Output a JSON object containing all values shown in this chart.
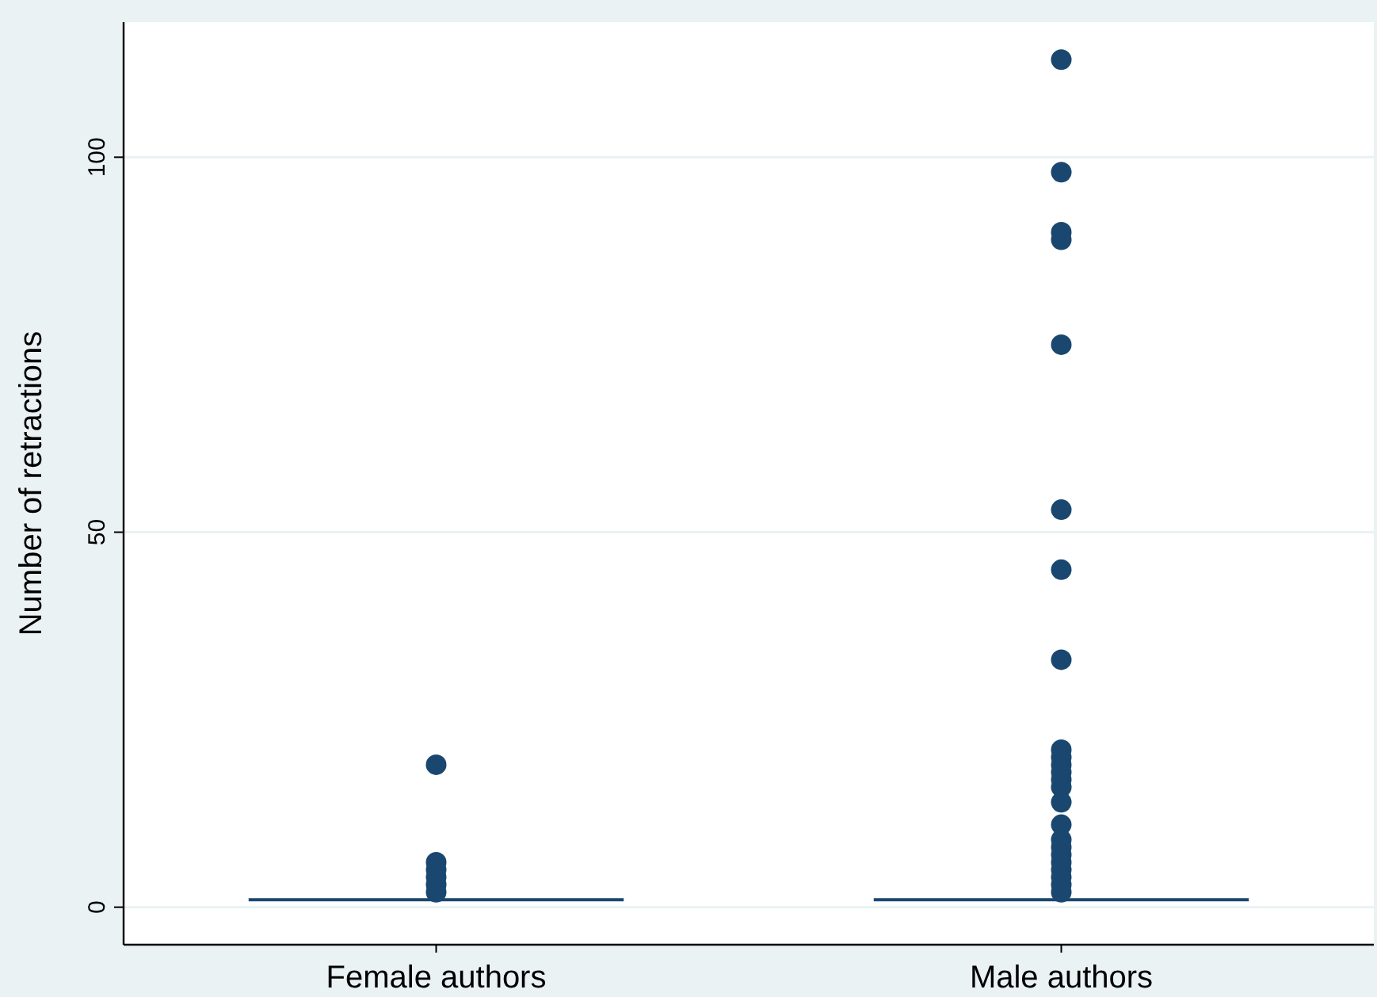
{
  "chart_data": {
    "type": "box",
    "ylabel": "Number of retractions",
    "categories": [
      "Female authors",
      "Male authors"
    ],
    "color": "#1a476f",
    "boxes": [
      {
        "low": 1,
        "q1": 1,
        "median": 1,
        "q3": 1,
        "high": 1,
        "outliers": [
          19,
          6,
          5,
          4,
          3,
          2
        ]
      },
      {
        "low": 1,
        "q1": 1,
        "median": 1,
        "q3": 1,
        "high": 1,
        "outliers": [
          113,
          98,
          90,
          89,
          75,
          53,
          45,
          33,
          21,
          20,
          19,
          18,
          17,
          16,
          14,
          11,
          9,
          8,
          7,
          6,
          5,
          4,
          3,
          2
        ]
      }
    ],
    "ylim": [
      -5,
      118
    ],
    "yticks": [
      0,
      50,
      100
    ],
    "grid": "y"
  }
}
